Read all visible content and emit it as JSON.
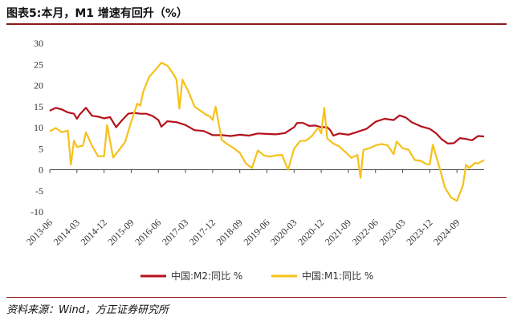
{
  "header": {
    "title": "图表5:本月，M1 增速有回升（%）"
  },
  "footer": {
    "source": "资料来源：Wind，方正证券研究所"
  },
  "chart_data": {
    "type": "line",
    "title": "图表5:本月，M1 增速有回升（%）",
    "xlabel": "",
    "ylabel": "",
    "ylim": [
      -10,
      30
    ],
    "yticks": [
      -10,
      -5,
      0,
      5,
      10,
      15,
      20,
      25,
      30
    ],
    "grid": false,
    "legend_position": "bottom",
    "x_range": [
      "2013-06",
      "2025-06"
    ],
    "x_tick_labels": [
      "2013-06",
      "2014-03",
      "2014-12",
      "2015-09",
      "2016-06",
      "2017-03",
      "2017-12",
      "2018-09",
      "2019-06",
      "2020-03",
      "2020-12",
      "2021-09",
      "2022-06",
      "2023-03",
      "2023-12",
      "2024-09"
    ],
    "series": [
      {
        "name": "中国:M2:同比 %",
        "color": "#b5121b",
        "points": [
          [
            "2013-06",
            14.0
          ],
          [
            "2013-08",
            14.7
          ],
          [
            "2013-10",
            14.3
          ],
          [
            "2013-12",
            13.6
          ],
          [
            "2014-02",
            13.3
          ],
          [
            "2014-03",
            12.1
          ],
          [
            "2014-04",
            13.2
          ],
          [
            "2014-06",
            14.7
          ],
          [
            "2014-08",
            12.8
          ],
          [
            "2014-10",
            12.6
          ],
          [
            "2014-12",
            12.2
          ],
          [
            "2015-02",
            12.5
          ],
          [
            "2015-04",
            10.1
          ],
          [
            "2015-06",
            11.8
          ],
          [
            "2015-08",
            13.3
          ],
          [
            "2015-10",
            13.5
          ],
          [
            "2015-12",
            13.3
          ],
          [
            "2016-02",
            13.3
          ],
          [
            "2016-04",
            12.8
          ],
          [
            "2016-06",
            11.8
          ],
          [
            "2016-07",
            10.2
          ],
          [
            "2016-09",
            11.5
          ],
          [
            "2016-12",
            11.3
          ],
          [
            "2017-03",
            10.6
          ],
          [
            "2017-06",
            9.4
          ],
          [
            "2017-09",
            9.2
          ],
          [
            "2017-12",
            8.2
          ],
          [
            "2018-03",
            8.2
          ],
          [
            "2018-06",
            8.0
          ],
          [
            "2018-09",
            8.3
          ],
          [
            "2018-12",
            8.1
          ],
          [
            "2019-03",
            8.6
          ],
          [
            "2019-06",
            8.5
          ],
          [
            "2019-09",
            8.4
          ],
          [
            "2019-12",
            8.7
          ],
          [
            "2020-03",
            10.1
          ],
          [
            "2020-04",
            11.1
          ],
          [
            "2020-06",
            11.1
          ],
          [
            "2020-08",
            10.4
          ],
          [
            "2020-10",
            10.5
          ],
          [
            "2020-12",
            10.1
          ],
          [
            "2021-02",
            10.1
          ],
          [
            "2021-03",
            9.4
          ],
          [
            "2021-04",
            8.1
          ],
          [
            "2021-06",
            8.6
          ],
          [
            "2021-09",
            8.3
          ],
          [
            "2021-12",
            9.0
          ],
          [
            "2022-03",
            9.7
          ],
          [
            "2022-06",
            11.4
          ],
          [
            "2022-09",
            12.1
          ],
          [
            "2022-12",
            11.8
          ],
          [
            "2023-02",
            12.9
          ],
          [
            "2023-04",
            12.4
          ],
          [
            "2023-06",
            11.3
          ],
          [
            "2023-09",
            10.3
          ],
          [
            "2023-12",
            9.7
          ],
          [
            "2024-02",
            8.7
          ],
          [
            "2024-04",
            7.2
          ],
          [
            "2024-06",
            6.2
          ],
          [
            "2024-08",
            6.3
          ],
          [
            "2024-10",
            7.5
          ],
          [
            "2024-12",
            7.3
          ],
          [
            "2025-02",
            7.0
          ],
          [
            "2025-04",
            8.0
          ],
          [
            "2025-06",
            7.9
          ]
        ]
      },
      {
        "name": "中国:M1:同比 %",
        "color": "#f6c11a",
        "points": [
          [
            "2013-06",
            9.1
          ],
          [
            "2013-08",
            9.9
          ],
          [
            "2013-10",
            8.9
          ],
          [
            "2013-12",
            9.3
          ],
          [
            "2014-01",
            1.2
          ],
          [
            "2014-02",
            6.9
          ],
          [
            "2014-03",
            5.4
          ],
          [
            "2014-05",
            5.7
          ],
          [
            "2014-06",
            8.9
          ],
          [
            "2014-08",
            5.7
          ],
          [
            "2014-10",
            3.2
          ],
          [
            "2014-12",
            3.2
          ],
          [
            "2015-01",
            10.6
          ],
          [
            "2015-03",
            2.9
          ],
          [
            "2015-05",
            4.7
          ],
          [
            "2015-07",
            6.6
          ],
          [
            "2015-09",
            11.4
          ],
          [
            "2015-11",
            15.7
          ],
          [
            "2015-12",
            15.2
          ],
          [
            "2016-01",
            18.6
          ],
          [
            "2016-03",
            22.1
          ],
          [
            "2016-05",
            23.7
          ],
          [
            "2016-07",
            25.4
          ],
          [
            "2016-09",
            24.7
          ],
          [
            "2016-11",
            22.7
          ],
          [
            "2016-12",
            21.4
          ],
          [
            "2017-01",
            14.5
          ],
          [
            "2017-02",
            21.4
          ],
          [
            "2017-04",
            18.5
          ],
          [
            "2017-06",
            15.0
          ],
          [
            "2017-08",
            14.0
          ],
          [
            "2017-10",
            13.0
          ],
          [
            "2017-11",
            12.7
          ],
          [
            "2017-12",
            11.8
          ],
          [
            "2018-01",
            15.0
          ],
          [
            "2018-03",
            7.1
          ],
          [
            "2018-05",
            6.0
          ],
          [
            "2018-07",
            5.1
          ],
          [
            "2018-09",
            4.0
          ],
          [
            "2018-11",
            1.5
          ],
          [
            "2019-01",
            0.4
          ],
          [
            "2019-03",
            4.6
          ],
          [
            "2019-05",
            3.4
          ],
          [
            "2019-07",
            3.1
          ],
          [
            "2019-09",
            3.4
          ],
          [
            "2019-11",
            3.5
          ],
          [
            "2020-01",
            0.0
          ],
          [
            "2020-03",
            5.0
          ],
          [
            "2020-05",
            6.8
          ],
          [
            "2020-07",
            6.9
          ],
          [
            "2020-09",
            8.1
          ],
          [
            "2020-11",
            10.0
          ],
          [
            "2020-12",
            8.6
          ],
          [
            "2021-01",
            14.7
          ],
          [
            "2021-02",
            7.4
          ],
          [
            "2021-04",
            6.2
          ],
          [
            "2021-06",
            5.5
          ],
          [
            "2021-08",
            4.2
          ],
          [
            "2021-10",
            2.8
          ],
          [
            "2021-12",
            3.5
          ],
          [
            "2022-01",
            -1.9
          ],
          [
            "2022-02",
            4.7
          ],
          [
            "2022-04",
            5.1
          ],
          [
            "2022-06",
            5.8
          ],
          [
            "2022-08",
            6.1
          ],
          [
            "2022-10",
            5.8
          ],
          [
            "2022-12",
            3.7
          ],
          [
            "2023-01",
            6.7
          ],
          [
            "2023-03",
            5.1
          ],
          [
            "2023-05",
            4.7
          ],
          [
            "2023-07",
            2.3
          ],
          [
            "2023-09",
            2.1
          ],
          [
            "2023-11",
            1.3
          ],
          [
            "2023-12",
            1.3
          ],
          [
            "2024-01",
            5.9
          ],
          [
            "2024-03",
            1.1
          ],
          [
            "2024-05",
            -4.2
          ],
          [
            "2024-07",
            -6.6
          ],
          [
            "2024-09",
            -7.4
          ],
          [
            "2024-11",
            -3.7
          ],
          [
            "2024-12",
            1.2
          ],
          [
            "2025-01",
            0.4
          ],
          [
            "2025-03",
            1.6
          ],
          [
            "2025-04",
            1.5
          ],
          [
            "2025-06",
            2.3
          ]
        ]
      }
    ]
  }
}
